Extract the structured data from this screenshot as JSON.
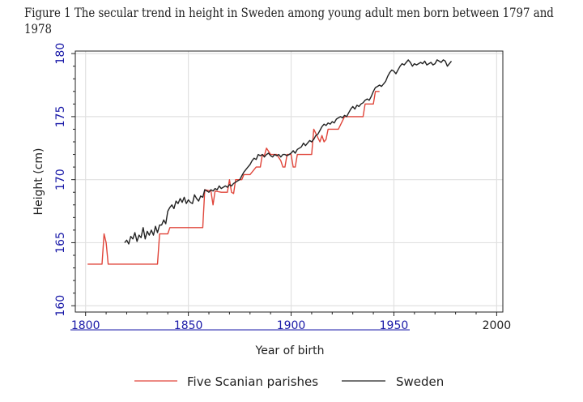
{
  "figure": {
    "caption_line1": "Figure 1 The secular trend in height in Sweden among young adult men born between 1797 and",
    "caption_line2": "1978"
  },
  "colors": {
    "five_scanian": "#e0453a",
    "sweden": "#222222",
    "grid": "#e1e1e1",
    "tick_blue": "#1a1aa8",
    "axis": "#222222"
  },
  "chart_data": {
    "type": "line",
    "title": "",
    "xlabel": "Year of birth",
    "ylabel": "Height (cm)",
    "xlim": [
      1795,
      2003
    ],
    "ylim": [
      159.5,
      180.2
    ],
    "xticks": [
      1800,
      1850,
      1900,
      1950,
      2000
    ],
    "xtick_labels": [
      "1800",
      "1850",
      "1900",
      "1950",
      "2000"
    ],
    "yticks": [
      160,
      165,
      170,
      175,
      180
    ],
    "ytick_labels": [
      "160",
      "165",
      "170",
      "175",
      "180"
    ],
    "grid": true,
    "legend": "bottom",
    "series": [
      {
        "name": "Five Scanian parishes",
        "color": "#e0453a",
        "x": [
          1801,
          1808,
          1809,
          1810,
          1811,
          1835,
          1836,
          1840,
          1841,
          1857,
          1858,
          1861,
          1862,
          1863,
          1866,
          1869,
          1870,
          1871,
          1872,
          1873,
          1876,
          1877,
          1880,
          1883,
          1885,
          1886,
          1887,
          1888,
          1890,
          1893,
          1895,
          1896,
          1897,
          1898,
          1900,
          1901,
          1902,
          1903,
          1904,
          1910,
          1911,
          1914,
          1915,
          1916,
          1917,
          1918,
          1919,
          1920,
          1921,
          1923,
          1926,
          1927,
          1928,
          1930,
          1935,
          1936,
          1937,
          1938,
          1940,
          1941,
          1942,
          1943
        ],
        "y": [
          163.3,
          163.3,
          165.7,
          165.0,
          163.3,
          163.3,
          165.7,
          165.7,
          166.2,
          166.2,
          169.2,
          169.1,
          168.0,
          169.1,
          169.0,
          169.0,
          170.0,
          169.0,
          168.9,
          170.0,
          170.0,
          170.4,
          170.4,
          171.0,
          171.0,
          172.0,
          171.9,
          172.5,
          172.0,
          172.0,
          171.5,
          171.0,
          171.0,
          172.0,
          172.0,
          171.0,
          171.0,
          172.0,
          172.0,
          172.0,
          174.0,
          173.0,
          173.5,
          173.0,
          173.2,
          174.0,
          174.0,
          174.0,
          174.0,
          174.0,
          175.0,
          175.0,
          175.0,
          175.0,
          175.0,
          176.0,
          176.0,
          176.0,
          176.0,
          177.0,
          177.0,
          177.0
        ]
      },
      {
        "name": "Sweden",
        "color": "#222222",
        "x": [
          1819,
          1820,
          1821,
          1822,
          1823,
          1824,
          1825,
          1826,
          1827,
          1828,
          1829,
          1830,
          1831,
          1832,
          1833,
          1834,
          1835,
          1836,
          1837,
          1838,
          1839,
          1840,
          1841,
          1842,
          1843,
          1844,
          1845,
          1846,
          1847,
          1848,
          1849,
          1850,
          1851,
          1852,
          1853,
          1854,
          1855,
          1856,
          1857,
          1858,
          1859,
          1860,
          1861,
          1862,
          1863,
          1864,
          1865,
          1866,
          1867,
          1868,
          1869,
          1870,
          1871,
          1872,
          1873,
          1874,
          1875,
          1876,
          1877,
          1878,
          1879,
          1880,
          1881,
          1882,
          1883,
          1884,
          1885,
          1886,
          1887,
          1888,
          1889,
          1890,
          1891,
          1892,
          1893,
          1894,
          1895,
          1896,
          1897,
          1898,
          1899,
          1900,
          1901,
          1902,
          1903,
          1904,
          1905,
          1906,
          1907,
          1908,
          1909,
          1910,
          1911,
          1912,
          1913,
          1914,
          1915,
          1916,
          1917,
          1918,
          1919,
          1920,
          1921,
          1922,
          1923,
          1924,
          1925,
          1926,
          1927,
          1928,
          1929,
          1930,
          1931,
          1932,
          1933,
          1934,
          1935,
          1936,
          1937,
          1938,
          1939,
          1940,
          1941,
          1942,
          1943,
          1944,
          1945,
          1946,
          1947,
          1948,
          1949,
          1950,
          1951,
          1952,
          1953,
          1954,
          1955,
          1956,
          1957,
          1958,
          1959,
          1960,
          1961,
          1962,
          1963,
          1964,
          1965,
          1966,
          1967,
          1968,
          1969,
          1970,
          1971,
          1972,
          1973,
          1974,
          1975,
          1976,
          1977,
          1978
        ],
        "y": [
          165.0,
          165.2,
          164.9,
          165.5,
          165.3,
          165.8,
          165.1,
          165.6,
          165.4,
          166.2,
          165.3,
          165.9,
          165.6,
          166.0,
          165.6,
          166.3,
          165.8,
          166.4,
          166.4,
          166.8,
          166.5,
          167.5,
          167.8,
          168.0,
          167.7,
          168.3,
          168.1,
          168.5,
          168.2,
          168.6,
          168.1,
          168.4,
          168.2,
          168.1,
          168.8,
          168.5,
          168.3,
          168.7,
          168.6,
          169.2,
          169.1,
          169.0,
          169.2,
          169.1,
          169.3,
          169.2,
          169.5,
          169.3,
          169.4,
          169.5,
          169.4,
          169.6,
          169.5,
          169.7,
          169.8,
          169.9,
          170.0,
          170.3,
          170.6,
          170.8,
          171.0,
          171.2,
          171.5,
          171.7,
          171.6,
          172.0,
          171.9,
          172.0,
          171.8,
          172.0,
          172.1,
          171.9,
          171.8,
          172.0,
          171.9,
          172.0,
          171.8,
          172.0,
          172.0,
          171.9,
          172.0,
          172.1,
          172.3,
          172.1,
          172.4,
          172.5,
          172.6,
          172.9,
          172.7,
          172.9,
          173.1,
          173.0,
          173.2,
          173.5,
          173.6,
          173.9,
          174.2,
          174.4,
          174.3,
          174.5,
          174.4,
          174.6,
          174.5,
          174.8,
          174.9,
          175.0,
          174.9,
          175.1,
          175.0,
          175.3,
          175.6,
          175.8,
          175.6,
          175.9,
          175.8,
          176.0,
          176.1,
          176.3,
          176.4,
          176.3,
          176.6,
          177.0,
          177.3,
          177.4,
          177.5,
          177.4,
          177.6,
          177.8,
          178.2,
          178.5,
          178.7,
          178.6,
          178.4,
          178.7,
          179.0,
          179.2,
          179.1,
          179.3,
          179.5,
          179.3,
          179.0,
          179.2,
          179.1,
          179.2,
          179.3,
          179.2,
          179.4,
          179.1,
          179.2,
          179.3,
          179.1,
          179.2,
          179.5,
          179.4,
          179.3,
          179.5,
          179.4,
          179.0,
          179.2,
          179.4
        ]
      }
    ]
  }
}
